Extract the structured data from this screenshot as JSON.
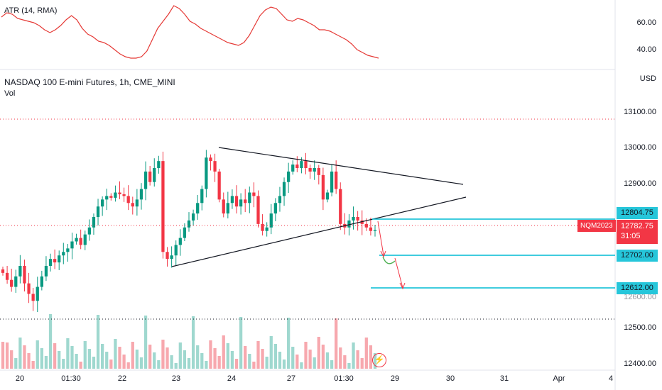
{
  "atr": {
    "label": "ATR (14, RMA)",
    "ticks": [
      "60.00",
      "40.00"
    ],
    "color": "#e53935"
  },
  "main": {
    "title": "NASDAQ 100 E-mini Futures, 1h, CME_MINI",
    "vol_label": "Vol",
    "currency": "USD",
    "price_ticks": [
      "13100.00",
      "13000.00",
      "12900.00",
      "12500.00",
      "12400.00"
    ],
    "partial_tick": "12600.00",
    "time_ticks": [
      "20",
      "01:30",
      "22",
      "23",
      "24",
      "27",
      "01:30",
      "29",
      "30",
      "31",
      "Apr",
      "4"
    ]
  },
  "price_tags": {
    "level_1": "12804.75",
    "level_2": "12702.00",
    "level_3": "12612.00",
    "current_price": "12782.75",
    "countdown": "31:05",
    "symbol": "NQM2023"
  },
  "colors": {
    "up": "#089981",
    "down": "#f23645",
    "vol_up": "#9fd8cf",
    "vol_down": "#f7a8ae",
    "level_line": "#00bcd4",
    "trend_line": "#131722",
    "projection_down": "#f23645",
    "projection_up": "#4caf50"
  },
  "icons": {
    "flash": "lightning-icon"
  },
  "chart_data": {
    "type": "candlestick",
    "series": [
      {
        "name": "NASDAQ 100 E-mini Futures, 1h, CME_MINI",
        "description": "hourly OHLC, approximate",
        "close": [
          12660,
          12640,
          12620,
          12650,
          12680,
          12630,
          12600,
          12580,
          12620,
          12650,
          12680,
          12700,
          12690,
          12710,
          12720,
          12730,
          12750,
          12760,
          12740,
          12770,
          12790,
          12820,
          12850,
          12870,
          12880,
          12875,
          12890,
          12885,
          12880,
          12860,
          12850,
          12870,
          12900,
          12950,
          12920,
          12960,
          12980,
          12720,
          12700,
          12710,
          12740,
          12760,
          12790,
          12810,
          12830,
          12860,
          12900,
          12990,
          12980,
          12950,
          12870,
          12830,
          12860,
          12880,
          12850,
          12870,
          12860,
          12890,
          12880,
          12800,
          12780,
          12790,
          12830,
          12860,
          12880,
          12920,
          12950,
          12970,
          12960,
          12980,
          12960,
          12950,
          12960,
          12940,
          12870,
          12890,
          12950,
          12900,
          12800,
          12790,
          12810,
          12820,
          12810,
          12800,
          12790,
          12780,
          12782.75
        ]
      }
    ],
    "atr_series": {
      "name": "ATR (14, RMA)",
      "values": [
        64,
        67,
        66,
        63,
        62,
        61,
        60,
        58,
        55,
        53,
        55,
        58,
        62,
        65,
        62,
        56,
        52,
        50,
        47,
        46,
        44,
        41,
        38,
        36,
        35,
        35,
        36,
        40,
        48,
        56,
        61,
        66,
        72,
        70,
        66,
        61,
        59,
        56,
        54,
        52,
        50,
        48,
        46,
        45,
        44,
        46,
        51,
        58,
        65,
        69,
        71,
        70,
        66,
        62,
        61,
        63,
        62,
        60,
        58,
        55,
        55,
        54,
        52,
        50,
        48,
        45,
        41,
        39,
        37,
        36,
        35
      ]
    },
    "atr_ylim": [
      30,
      72
    ],
    "ylim": [
      12380,
      13150
    ],
    "overlays": {
      "horizontal_levels": [
        12804.75,
        12702.0,
        12612.0
      ],
      "dotted_levels": [
        13100,
        12530
      ]
    }
  }
}
